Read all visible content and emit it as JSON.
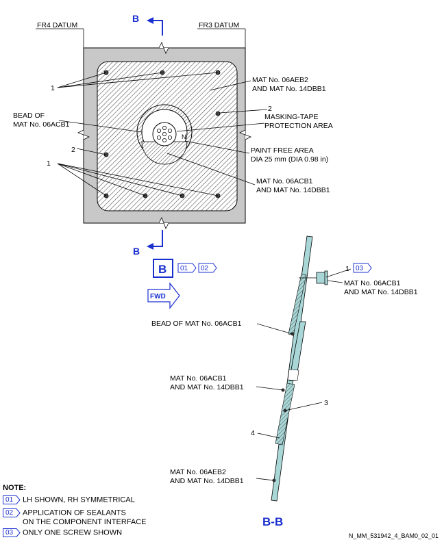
{
  "datums": {
    "left": "FR4 DATUM",
    "right": "FR3 DATUM"
  },
  "section_markers": {
    "top": "B",
    "bottom": "B",
    "view_box": "B",
    "section_title": "B-B"
  },
  "view_tags": [
    "01",
    "02"
  ],
  "fwd_label": "FWD",
  "callouts_panel": {
    "one_top": "1",
    "one_bottom": "1",
    "two_left": "2",
    "two_right": "2",
    "bead_line1": "BEAD OF",
    "bead_line2": "MAT No. 06ACB1",
    "mat_top_line1": "MAT No. 06AEB2",
    "mat_top_line2": "AND MAT No. 14DBB1",
    "masking_line1": "MASKING-TAPE",
    "masking_line2": "PROTECTION AREA",
    "paint_line1": "PAINT FREE AREA",
    "paint_line2": "DIA 25 mm (DIA 0.98 in)",
    "mat_bottom_line1": "MAT No. 06ACB1",
    "mat_bottom_line2": "AND MAT No. 14DBB1",
    "n_mark": "N"
  },
  "callouts_section": {
    "screw_num": "1",
    "screw_tag": "03",
    "screw_mat_line1": "MAT No. 06ACB1",
    "screw_mat_line2": "AND MAT No. 14DBB1",
    "bead": "BEAD OF MAT No. 06ACB1",
    "mat_mid_line1": "MAT No. 06ACB1",
    "mat_mid_line2": "AND MAT No. 14DBB1",
    "three": "3",
    "four": "4",
    "mat_low_line1": "MAT No. 06AEB2",
    "mat_low_line2": "AND MAT No. 14DBB1"
  },
  "notes": {
    "title": "NOTE:",
    "items": [
      {
        "tag": "01",
        "text": "LH SHOWN, RH SYMMETRICAL"
      },
      {
        "tag": "02",
        "text": "APPLICATION OF SEALANTS",
        "text2": "ON THE COMPONENT INTERFACE"
      },
      {
        "tag": "03",
        "text": "ONLY ONE SCREW SHOWN"
      }
    ]
  },
  "reference": "N_MM_531942_4_BAM0_02_01",
  "colors": {
    "label_blue": "#1a2fd0",
    "panel_grey": "#c8c8c8",
    "section_cyan": "#a9d6d6"
  }
}
